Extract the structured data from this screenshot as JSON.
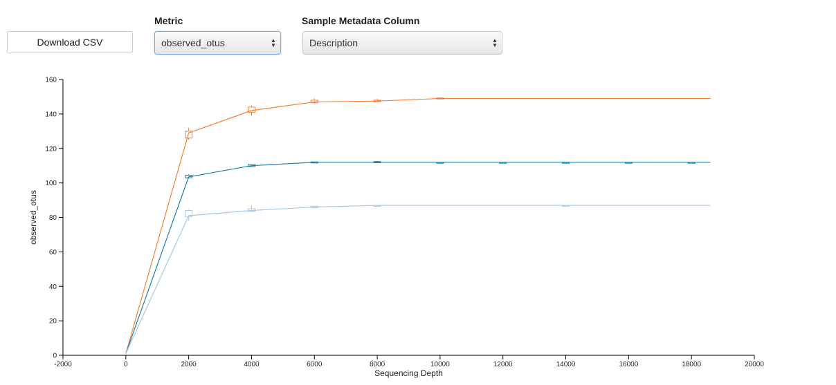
{
  "controls": {
    "download_label": "Download CSV",
    "metric_label": "Metric",
    "metric_value": "observed_otus",
    "metadata_label": "Sample Metadata Column",
    "metadata_value": "Description"
  },
  "chart_data": {
    "type": "line",
    "title": "",
    "xlabel": "Sequencing Depth",
    "ylabel": "observed_otus",
    "xlim": [
      -2000,
      20000
    ],
    "ylim": [
      0,
      160
    ],
    "xticks": [
      -2000,
      0,
      2000,
      4000,
      6000,
      8000,
      10000,
      12000,
      14000,
      16000,
      18000,
      20000
    ],
    "yticks": [
      0,
      20,
      40,
      60,
      80,
      100,
      120,
      140,
      160
    ],
    "grid": false,
    "series": [
      {
        "color": "#f57f35",
        "x": [
          0,
          2000,
          4000,
          6000,
          8000,
          10000,
          18600
        ],
        "y": [
          1,
          129,
          142,
          147,
          147.5,
          149,
          149
        ],
        "boxes": [
          {
            "x": 2000,
            "min": 125,
            "q1": 126,
            "q3": 130,
            "max": 132
          },
          {
            "x": 4000,
            "min": 139,
            "q1": 141,
            "q3": 144,
            "max": 145
          },
          {
            "x": 6000,
            "min": 146,
            "q1": 146.5,
            "q3": 148,
            "max": 149
          },
          {
            "x": 8000,
            "min": 147,
            "q1": 147.2,
            "q3": 148,
            "max": 148.7
          },
          {
            "x": 10000,
            "min": 148.8,
            "q1": 148.8,
            "q3": 149.3,
            "max": 149.3
          }
        ]
      },
      {
        "color": "#1f7ea1",
        "x": [
          0,
          2000,
          4000,
          6000,
          8000,
          10000,
          12000,
          14000,
          16000,
          18000,
          18600
        ],
        "y": [
          1,
          103.5,
          110,
          112,
          112,
          112,
          112,
          112,
          112,
          112,
          112
        ],
        "boxes": [
          {
            "x": 2000,
            "min": 102.5,
            "q1": 103,
            "q3": 104.5,
            "max": 105
          },
          {
            "x": 4000,
            "min": 109.3,
            "q1": 109.5,
            "q3": 110.7,
            "max": 111
          },
          {
            "x": 6000,
            "min": 111.3,
            "q1": 111.7,
            "q3": 112.2,
            "max": 112.4
          },
          {
            "x": 8000,
            "min": 111.5,
            "q1": 111.7,
            "q3": 112.4,
            "max": 112.5
          },
          {
            "x": 10000,
            "min": 112,
            "q1": 112,
            "q3": 112,
            "max": 112
          },
          {
            "x": 12000,
            "min": 112,
            "q1": 112,
            "q3": 112,
            "max": 112
          },
          {
            "x": 14000,
            "min": 112,
            "q1": 112,
            "q3": 112,
            "max": 112
          },
          {
            "x": 16000,
            "min": 112,
            "q1": 112,
            "q3": 112,
            "max": 112
          },
          {
            "x": 18000,
            "min": 112,
            "q1": 112,
            "q3": 112,
            "max": 112
          }
        ]
      },
      {
        "color": "#a6c8e8",
        "x": [
          0,
          2000,
          4000,
          6000,
          8000,
          10000,
          18600
        ],
        "y": [
          1,
          81,
          84,
          86,
          87,
          87,
          87
        ],
        "boxes": [
          {
            "x": 2000,
            "min": 78,
            "q1": 80.5,
            "q3": 84,
            "max": 84.5
          },
          {
            "x": 4000,
            "min": 83,
            "q1": 83.5,
            "q3": 85,
            "max": 87
          },
          {
            "x": 6000,
            "min": 85.5,
            "q1": 85.7,
            "q3": 86.5,
            "max": 86.6
          },
          {
            "x": 8000,
            "min": 87,
            "q1": 87,
            "q3": 87,
            "max": 87
          },
          {
            "x": 14000,
            "min": 87,
            "q1": 87,
            "q3": 87,
            "max": 87
          }
        ]
      }
    ]
  }
}
